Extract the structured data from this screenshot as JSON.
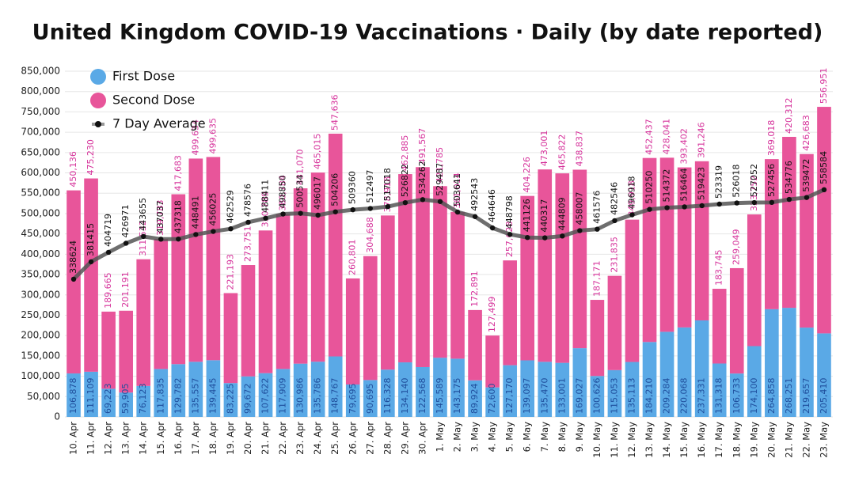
{
  "chart_data": {
    "type": "bar",
    "title": "United Kingdom COVID-19 Vaccinations · Daily (by date reported)",
    "categories": [
      "10. Apr",
      "11. Apr",
      "12. Apr",
      "13. Apr",
      "14. Apr",
      "15. Apr",
      "16. Apr",
      "17. Apr",
      "18. Apr",
      "19. Apr",
      "20. Apr",
      "21. Apr",
      "22. Apr",
      "23. Apr",
      "24. Apr",
      "25. Apr",
      "26. Apr",
      "27. Apr",
      "28. Apr",
      "29. Apr",
      "30. Apr",
      "1. May",
      "2. May",
      "3. May",
      "4. May",
      "5. May",
      "6. May",
      "7. May",
      "8. May",
      "9. May",
      "10. May",
      "11. May",
      "12. May",
      "13. May",
      "14. May",
      "15. May",
      "16. May",
      "17. May",
      "18. May",
      "19. May",
      "20. May",
      "21. May",
      "22. May",
      "23. May"
    ],
    "series": [
      {
        "name": "First Dose",
        "color": "#5aa9e6",
        "values": [
          106878,
          111109,
          69223,
          59905,
          76123,
          117835,
          129782,
          135557,
          139445,
          83225,
          99672,
          107622,
          117909,
          130986,
          135786,
          148767,
          79695,
          90695,
          116328,
          134140,
          122568,
          145589,
          143175,
          89924,
          72600,
          127170,
          139097,
          135470,
          133001,
          169027,
          100626,
          115053,
          135113,
          184210,
          209284,
          220068,
          237331,
          131318,
          106733,
          174100,
          264858,
          268251,
          219657,
          205410
        ],
        "value_labels": [
          "106,878",
          "111,109",
          "69,223",
          "59,905",
          "76,123",
          "117,835",
          "129,782",
          "135,557",
          "139,445",
          "83,225",
          "99,672",
          "107,622",
          "117,909",
          "130,986",
          "135,786",
          "148,767",
          "79,695",
          "90,695",
          "116,328",
          "134,140",
          "122,568",
          "145,589",
          "143,175",
          "89,924",
          "72,600",
          "127,170",
          "139,097",
          "135,470",
          "133,001",
          "169,027",
          "100,626",
          "115,053",
          "135,113",
          "184,210",
          "209,284",
          "220,068",
          "237,331",
          "131,318",
          "106,733",
          "174,100",
          "264,858",
          "268,251",
          "219,657",
          "205,410"
        ]
      },
      {
        "name": "Second Dose",
        "color": "#e8559a",
        "values": [
          450136,
          475230,
          189665,
          201191,
          311532,
          319783,
          417683,
          499634,
          499635,
          221193,
          273751,
          350789,
          380784,
          431070,
          465015,
          547636,
          260801,
          304688,
          378918,
          462885,
          491567,
          421785,
          361014,
          172891,
          127499,
          257628,
          404226,
          473001,
          465822,
          438837,
          187171,
          231835,
          349918,
          452437,
          428041,
          393402,
          391246,
          183745,
          259049,
          323752,
          369018,
          420312,
          426683,
          556951
        ],
        "value_labels": [
          "450,136",
          "475,230",
          "189,665",
          "201,191",
          "311,532",
          "319,783",
          "417,683",
          "499,634",
          "499,635",
          "221,193",
          "273,751",
          "350,789",
          "380,784",
          "431,070",
          "465,015",
          "547,636",
          "260,801",
          "304,688",
          "378,918",
          "462,885",
          "491,567",
          "421,785",
          "361,014",
          "172,891",
          "127,499",
          "257,628",
          "404,226",
          "473,001",
          "465,822",
          "438,837",
          "187,171",
          "231,835",
          "349,918",
          "452,437",
          "428,041",
          "393,402",
          "391,246",
          "183,745",
          "259,049",
          "323,752",
          "369,018",
          "420,312",
          "426,683",
          "556,951"
        ]
      },
      {
        "name": "7 Day Average",
        "type": "line",
        "color": "#555555",
        "values": [
          338624,
          381415,
          404719,
          426971,
          443655,
          437037,
          437318,
          448491,
          456025,
          462529,
          478576,
          488411,
          498850,
          500534,
          496017,
          504206,
          509360,
          512497,
          517018,
          526822,
          534262,
          529487,
          503641,
          492543,
          464646,
          448798,
          441126,
          440317,
          444809,
          458007,
          461576,
          482546,
          496918,
          510250,
          514372,
          516464,
          519423,
          523319,
          526018,
          527052,
          527456,
          534776,
          539472,
          558584
        ]
      }
    ],
    "ylim": [
      0,
      850000
    ],
    "yticks": [
      0,
      {
        "value": 50000,
        "label": "50,000"
      },
      {
        "value": 100000,
        "label": "100,000"
      },
      {
        "value": 150000,
        "label": "150,000"
      },
      {
        "value": 200000,
        "label": "200,000"
      },
      {
        "value": 250000,
        "label": "250,000"
      },
      {
        "value": 300000,
        "label": "300,000"
      },
      {
        "value": 350000,
        "label": "350,000"
      },
      {
        "value": 400000,
        "label": "400,000"
      },
      {
        "value": 450000,
        "label": "450,000"
      },
      {
        "value": 500000,
        "label": "500,000"
      },
      {
        "value": 550000,
        "label": "550,000"
      },
      {
        "value": 600000,
        "label": "600,000"
      },
      {
        "value": 650000,
        "label": "650,000"
      },
      {
        "value": 700000,
        "label": "700,000"
      },
      {
        "value": 750000,
        "label": "750,000"
      },
      {
        "value": 800000,
        "label": "800,000"
      },
      {
        "value": 850000,
        "label": "850,000"
      }
    ],
    "grid": true,
    "legend": "top-left"
  }
}
